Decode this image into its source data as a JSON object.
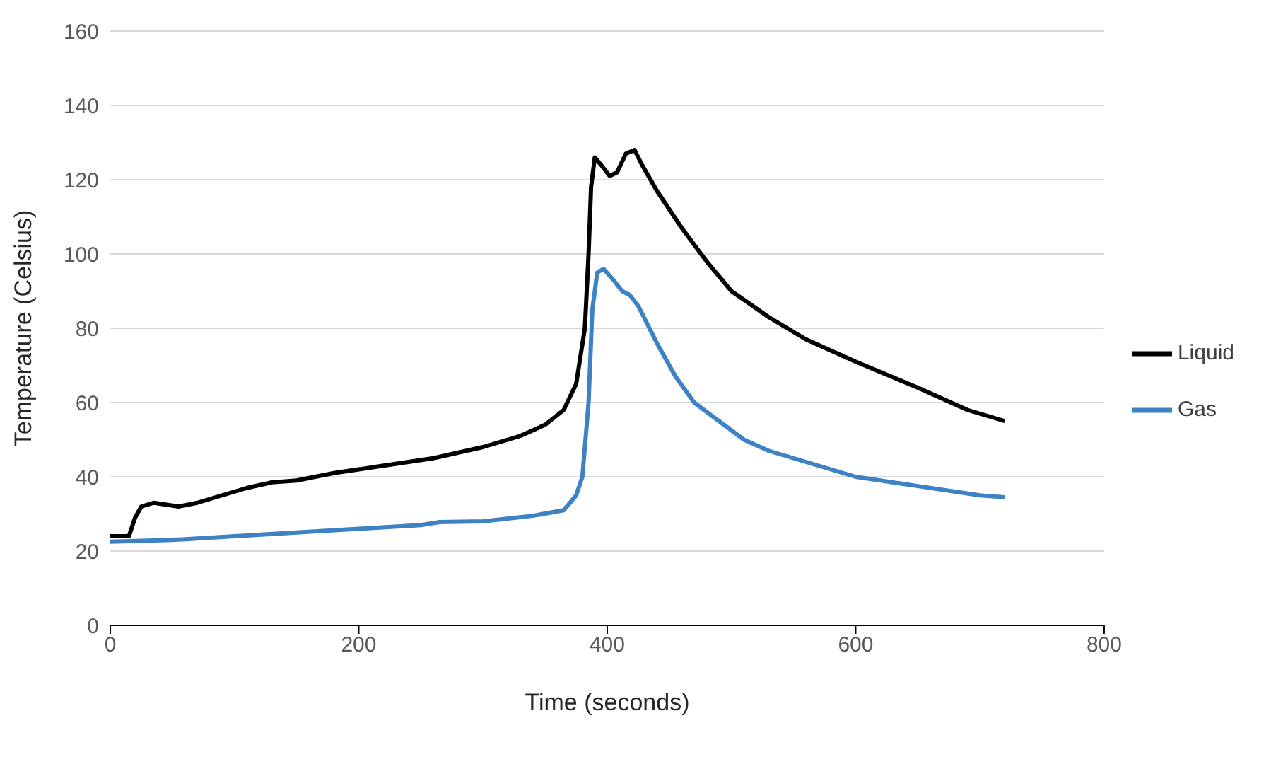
{
  "chart_data": {
    "type": "line",
    "xlabel": "Time (seconds)",
    "ylabel": "Temperature  (Celsius)",
    "xlim": [
      0,
      800
    ],
    "xticks": [
      0,
      200,
      400,
      600,
      800
    ],
    "ylim": [
      0,
      160
    ],
    "yticks": [
      0,
      20,
      40,
      60,
      80,
      100,
      120,
      140,
      160
    ],
    "grid": "y",
    "legend": "right",
    "marker": "none",
    "line_style": "solid",
    "series": [
      {
        "name": "Liquid",
        "color": "#000000",
        "x": [
          0,
          15,
          20,
          25,
          35,
          55,
          70,
          90,
          110,
          130,
          150,
          180,
          220,
          260,
          300,
          330,
          350,
          365,
          375,
          382,
          385,
          387,
          390,
          395,
          402,
          408,
          415,
          422,
          428,
          440,
          460,
          480,
          500,
          530,
          560,
          600,
          650,
          690,
          720
        ],
        "values": [
          24,
          24,
          29,
          32,
          33,
          32,
          33,
          35,
          37,
          38.5,
          39,
          41,
          43,
          45,
          48,
          51,
          54,
          58,
          65,
          80,
          100,
          118,
          126,
          124,
          121,
          122,
          127,
          128,
          124,
          117,
          107,
          98,
          90,
          83,
          77,
          71,
          64,
          58,
          55
        ]
      },
      {
        "name": "Gas",
        "color": "#3c82c4",
        "x": [
          0,
          50,
          100,
          150,
          200,
          250,
          265,
          300,
          340,
          365,
          375,
          380,
          385,
          388,
          392,
          397,
          405,
          412,
          418,
          425,
          440,
          455,
          470,
          490,
          510,
          530,
          560,
          600,
          650,
          700,
          720
        ],
        "values": [
          22.5,
          23,
          24,
          25,
          26,
          27,
          27.8,
          28,
          29.5,
          31,
          35,
          40,
          60,
          85,
          95,
          96,
          93,
          90,
          89,
          86,
          76,
          67,
          60,
          55,
          50,
          47,
          44,
          40,
          37.5,
          35,
          34.5
        ]
      }
    ]
  }
}
